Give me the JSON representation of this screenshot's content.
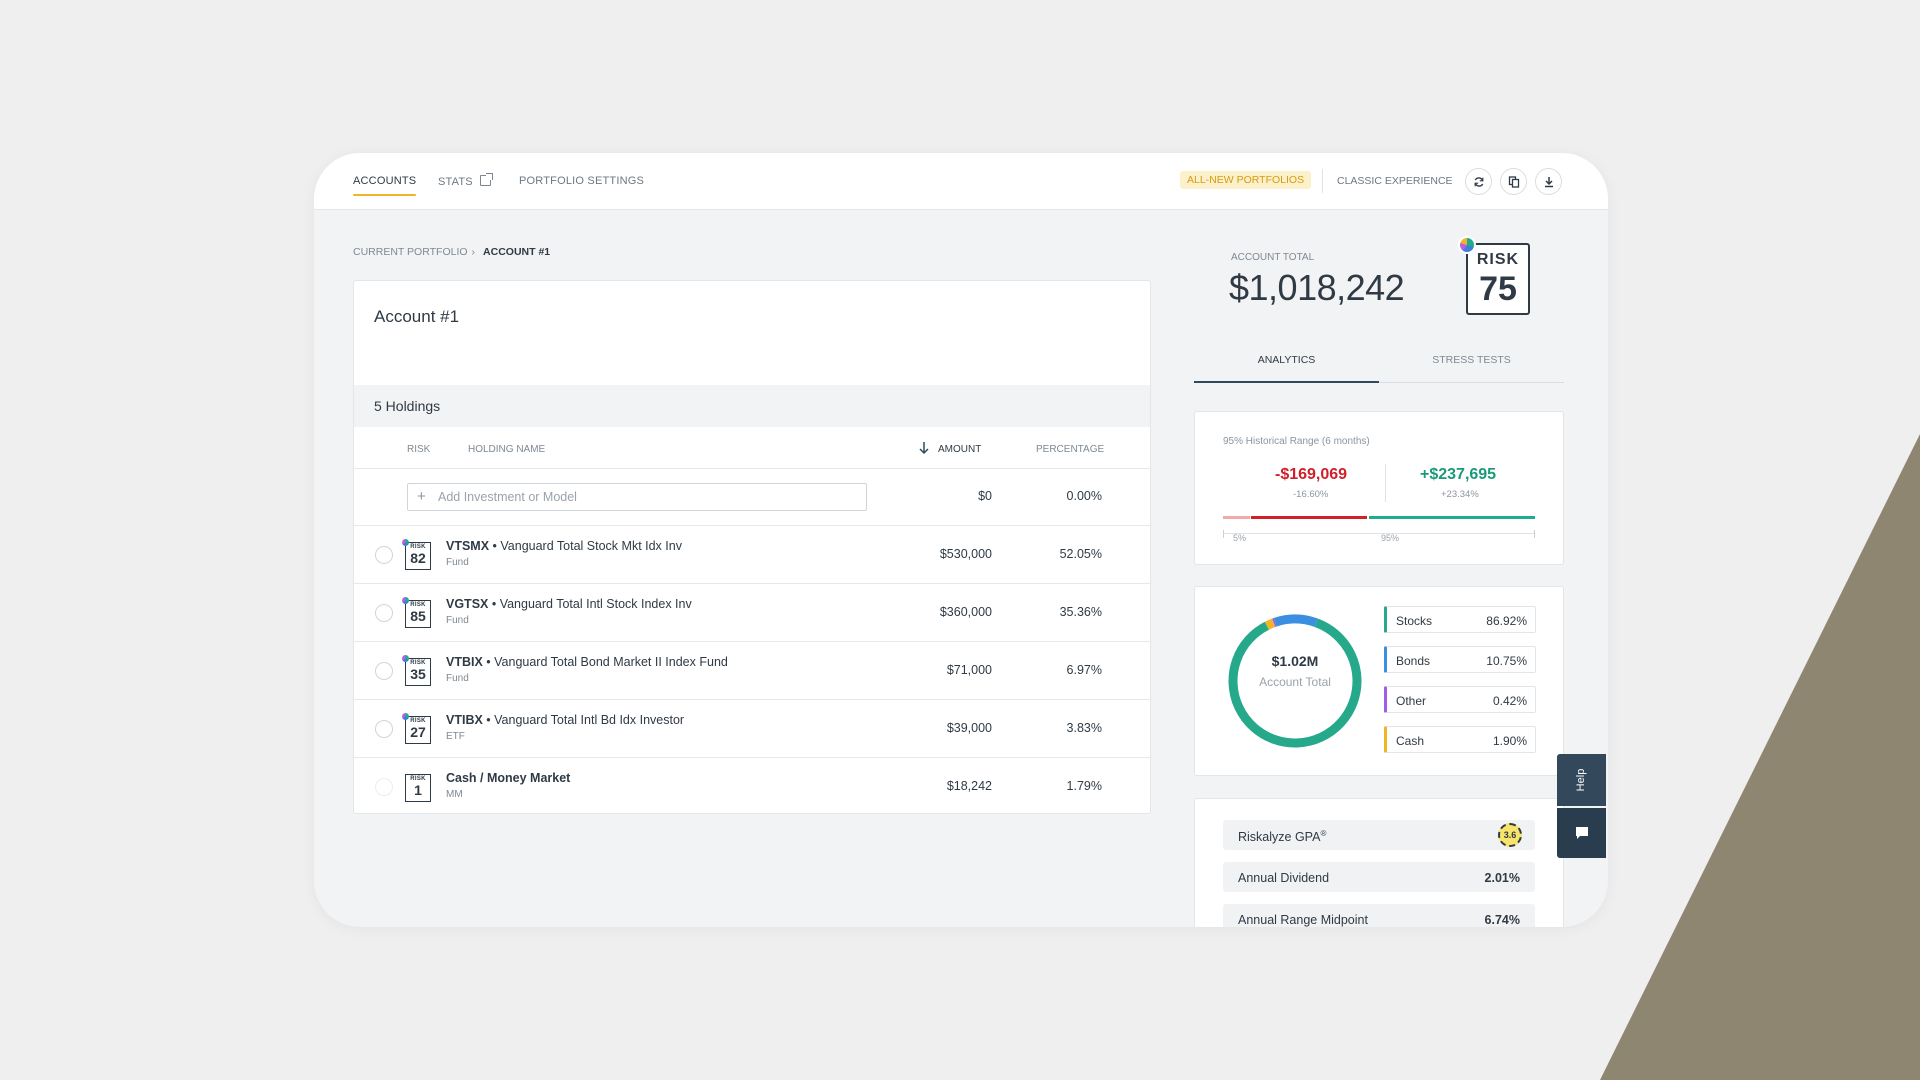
{
  "nav": {
    "accounts": "ACCOUNTS",
    "stats": "STATS",
    "portfolio_settings": "PORTFOLIO SETTINGS",
    "new_portfolios": "ALL-NEW PORTFOLIOS",
    "classic": "CLASSIC EXPERIENCE"
  },
  "breadcrumb": {
    "parent": "CURRENT PORTFOLIO",
    "current": "ACCOUNT #1"
  },
  "account": {
    "title": "Account #1",
    "holdings_count": "5 Holdings",
    "columns": {
      "risk": "RISK",
      "name": "HOLDING NAME",
      "amount": "AMOUNT",
      "percentage": "PERCENTAGE"
    },
    "add_placeholder": "Add Investment or Model",
    "add_amount": "$0",
    "add_percentage": "0.00%",
    "holdings": [
      {
        "risk_label": "RISK",
        "risk": "82",
        "ticker": "VTSMX",
        "name": " • Vanguard Total Stock Mkt Idx Inv",
        "type": "Fund",
        "amount": "$530,000",
        "percentage": "52.05%"
      },
      {
        "risk_label": "RISK",
        "risk": "85",
        "ticker": "VGTSX",
        "name": " • Vanguard Total Intl Stock Index Inv",
        "type": "Fund",
        "amount": "$360,000",
        "percentage": "35.36%"
      },
      {
        "risk_label": "RISK",
        "risk": "35",
        "ticker": "VTBIX",
        "name": " • Vanguard Total Bond Market II Index Fund",
        "type": "Fund",
        "amount": "$71,000",
        "percentage": "6.97%"
      },
      {
        "risk_label": "RISK",
        "risk": "27",
        "ticker": "VTIBX",
        "name": " • Vanguard Total Intl Bd Idx Investor",
        "type": "ETF",
        "amount": "$39,000",
        "percentage": "3.83%"
      },
      {
        "risk_label": "RISK",
        "risk": "1",
        "ticker": "",
        "name": "Cash / Money Market",
        "type": "MM",
        "amount": "$18,242",
        "percentage": "1.79%"
      }
    ]
  },
  "summary": {
    "label": "ACCOUNT TOTAL",
    "total": "$1,018,242",
    "risk_label": "RISK",
    "risk": "75"
  },
  "tabs": {
    "analytics": "ANALYTICS",
    "stress": "STRESS TESTS"
  },
  "range": {
    "title": "95% Historical Range (6 months)",
    "low": "-$169,069",
    "low_pct": "-16.60%",
    "high": "+$237,695",
    "high_pct": "+23.34%",
    "tick_low": "5%",
    "tick_high": "95%"
  },
  "allocation": {
    "center_value": "$1.02M",
    "center_label": "Account Total",
    "items": [
      {
        "name": "Stocks",
        "pct": "86.92%",
        "value": 86.92,
        "color": "#26a98b"
      },
      {
        "name": "Bonds",
        "pct": "10.75%",
        "value": 10.75,
        "color": "#3b8fe0"
      },
      {
        "name": "Other",
        "pct": "0.42%",
        "value": 0.42,
        "color": "#a05de8"
      },
      {
        "name": "Cash",
        "pct": "1.90%",
        "value": 1.9,
        "color": "#f0b429"
      }
    ]
  },
  "stats": {
    "gpa_label": "Riskalyze GPA",
    "gpa_sup": "®",
    "gpa_value": "3.6",
    "dividend_label": "Annual Dividend",
    "dividend_value": "2.01%",
    "midpoint_label": "Annual Range Midpoint",
    "midpoint_value": "6.74%"
  },
  "help": {
    "label": "Help"
  },
  "colors": {
    "accent": "#f0b429",
    "negative": "#d0202a",
    "positive": "#1a9a79",
    "navy": "#2f4a5e"
  }
}
